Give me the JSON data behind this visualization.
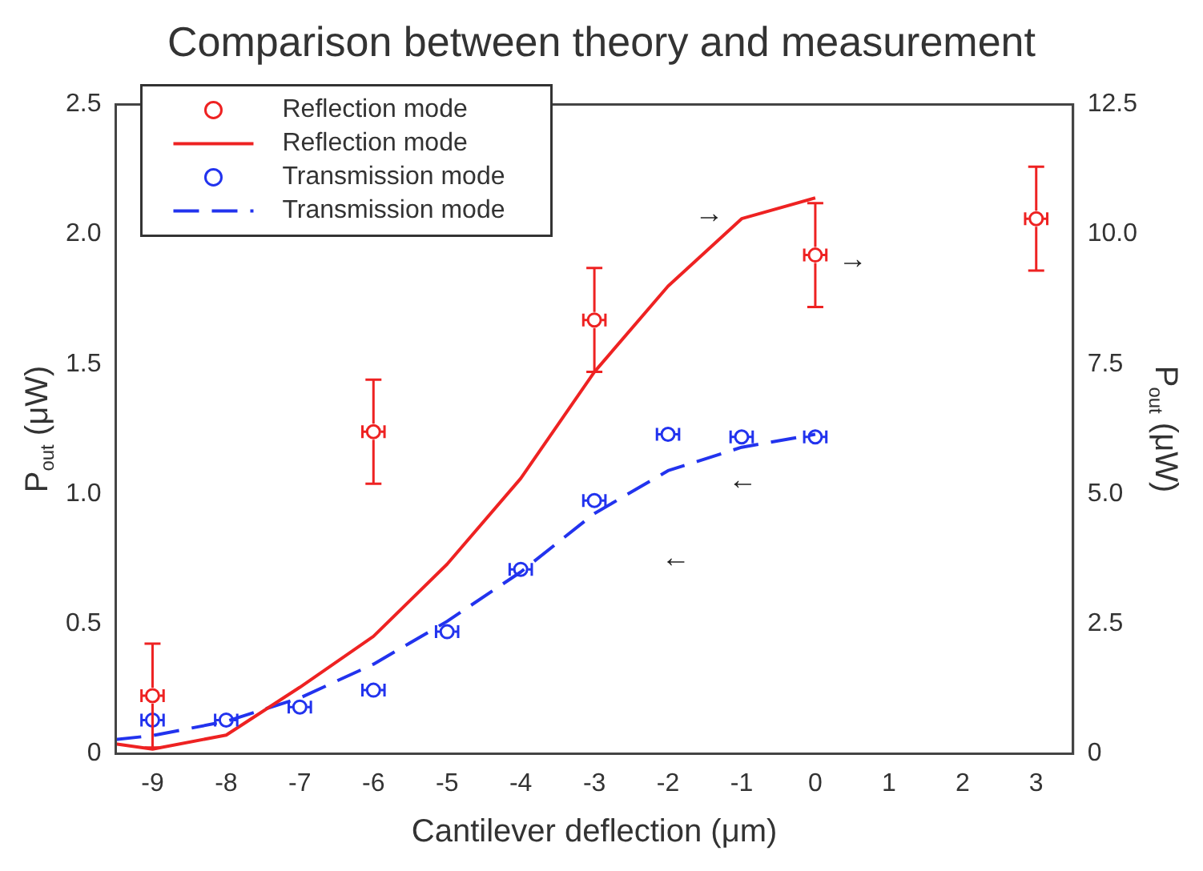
{
  "chart_data": {
    "type": "line",
    "title": "Comparison between theory and measurement",
    "xlabel": "Cantilever deflection (μm)",
    "ylabel": "P$_{out}$ (μW)",
    "y2label": "P$_{out}$ (μW)",
    "xlim": [
      -9.5,
      3.5
    ],
    "xticks": [
      -9,
      -8,
      -7,
      -6,
      -5,
      -4,
      -3,
      -2,
      -1,
      0,
      1,
      2,
      3
    ],
    "ylim": [
      0,
      2.5
    ],
    "yticks": [
      0,
      0.5,
      {
        "value": 1,
        "label": "1.0"
      },
      1.5,
      {
        "value": 2,
        "label": "2.0"
      },
      2.5
    ],
    "y2lim": [
      0,
      12.5
    ],
    "y2ticks": [
      0,
      2.5,
      {
        "value": 5,
        "label": "5.0"
      },
      7.5,
      {
        "value": 10,
        "label": "10.0"
      },
      12.5
    ],
    "legend": "top left",
    "grid": false,
    "series": [
      {
        "name": "Reflection mode",
        "type": "scatter",
        "marker": "circle",
        "axis": "y2",
        "color": "#ee2222",
        "x": [
          -9,
          -6,
          -3,
          0,
          3
        ],
        "values": [
          1.12,
          6.2,
          8.35,
          9.6,
          10.3
        ],
        "errors": [
          1.0,
          1.0,
          1.0,
          1.0,
          1.0
        ],
        "xerrors": [
          0.15,
          0.15,
          0.15,
          0.15,
          0.15
        ]
      },
      {
        "name": "Reflection mode",
        "type": "line",
        "line_style": "solid",
        "axis": "y2",
        "color": "#ee2222",
        "x": [
          -9.5,
          -9,
          -8,
          -7,
          -6,
          -5,
          -4,
          -3,
          -2,
          -1,
          0
        ],
        "values": [
          0.19,
          0.09,
          0.36,
          1.28,
          2.26,
          3.65,
          5.3,
          7.35,
          9.0,
          10.3,
          10.7
        ]
      },
      {
        "name": "Transmission mode",
        "type": "scatter",
        "marker": "circle",
        "color": "#2233ee",
        "x": [
          -9,
          -8,
          -7,
          -6,
          -5,
          -4,
          -3,
          -2,
          -1,
          0
        ],
        "values": [
          0.13,
          0.13,
          0.18,
          0.245,
          0.47,
          0.71,
          0.975,
          1.23,
          1.22,
          1.22
        ],
        "xerrors": [
          0.15,
          0.15,
          0.15,
          0.15,
          0.15,
          0.15,
          0.15,
          0.15,
          0.15,
          0.15
        ]
      },
      {
        "name": "Transmission mode",
        "type": "line",
        "line_style": "dashed",
        "color": "#2233ee",
        "x": [
          -9.5,
          -9,
          -8,
          -7,
          -6,
          -5,
          -4,
          -3,
          -2,
          -1,
          0
        ],
        "values": [
          0.055,
          0.07,
          0.125,
          0.215,
          0.345,
          0.51,
          0.7,
          0.925,
          1.09,
          1.18,
          1.23
        ]
      }
    ],
    "annotations": [
      "→",
      "→",
      "←",
      "←"
    ]
  }
}
